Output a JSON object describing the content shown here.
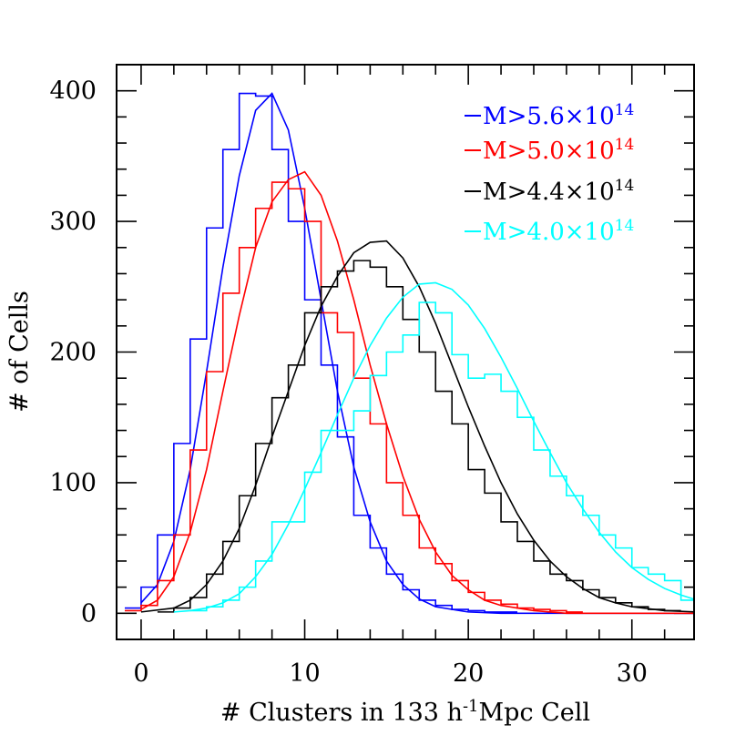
{
  "chart_data": {
    "type": "line",
    "title": "",
    "xlabel": "# Clusters in 133 h",
    "xlabel_sup": "-1",
    "xlabel_suffix": "Mpc Cell",
    "ylabel": "# of Cells",
    "xlim": [
      -1.5,
      33.8
    ],
    "ylim": [
      -20,
      420
    ],
    "x_ticks": [
      0,
      10,
      20,
      30
    ],
    "x_tick_labels": [
      "0",
      "10",
      "20",
      "30"
    ],
    "y_ticks": [
      0,
      100,
      200,
      300,
      400
    ],
    "y_tick_labels": [
      "0",
      "100",
      "200",
      "300",
      "400"
    ],
    "grid": false,
    "legend_position": "top-right",
    "series": [
      {
        "name": "M>5.6×10",
        "name_sup": "14",
        "color": "#0000ff",
        "histogram": [
          {
            "x": -0.5,
            "y": 4
          },
          {
            "x": 0.5,
            "y": 20
          },
          {
            "x": 1.5,
            "y": 60
          },
          {
            "x": 2.5,
            "y": 130
          },
          {
            "x": 3.5,
            "y": 210
          },
          {
            "x": 4.5,
            "y": 295
          },
          {
            "x": 5.5,
            "y": 355
          },
          {
            "x": 6.5,
            "y": 398
          },
          {
            "x": 7.5,
            "y": 396
          },
          {
            "x": 8.5,
            "y": 355
          },
          {
            "x": 9.5,
            "y": 300
          },
          {
            "x": 10.5,
            "y": 240
          },
          {
            "x": 11.5,
            "y": 190
          },
          {
            "x": 12.5,
            "y": 135
          },
          {
            "x": 13.5,
            "y": 75
          },
          {
            "x": 14.5,
            "y": 50
          },
          {
            "x": 15.5,
            "y": 30
          },
          {
            "x": 16.5,
            "y": 18
          },
          {
            "x": 17.5,
            "y": 10
          },
          {
            "x": 18.5,
            "y": 6
          },
          {
            "x": 19.5,
            "y": 3
          },
          {
            "x": 20.5,
            "y": 2
          },
          {
            "x": 21.5,
            "y": 1
          },
          {
            "x": 22.5,
            "y": 1
          }
        ],
        "fit": [
          {
            "x": 0,
            "y": 8
          },
          {
            "x": 1,
            "y": 22
          },
          {
            "x": 2,
            "y": 55
          },
          {
            "x": 3,
            "y": 110
          },
          {
            "x": 4,
            "y": 185
          },
          {
            "x": 5,
            "y": 265
          },
          {
            "x": 6,
            "y": 335
          },
          {
            "x": 7,
            "y": 385
          },
          {
            "x": 8,
            "y": 398
          },
          {
            "x": 9,
            "y": 370
          },
          {
            "x": 10,
            "y": 310
          },
          {
            "x": 11,
            "y": 240
          },
          {
            "x": 12,
            "y": 170
          },
          {
            "x": 13,
            "y": 112
          },
          {
            "x": 14,
            "y": 70
          },
          {
            "x": 15,
            "y": 40
          },
          {
            "x": 16,
            "y": 22
          },
          {
            "x": 17,
            "y": 11
          },
          {
            "x": 18,
            "y": 5
          },
          {
            "x": 20,
            "y": 1
          },
          {
            "x": 22,
            "y": 0
          },
          {
            "x": 34,
            "y": 0
          }
        ]
      },
      {
        "name": "M>5.0×10",
        "name_sup": "14",
        "color": "#ff0000",
        "histogram": [
          {
            "x": -0.5,
            "y": 2
          },
          {
            "x": 0.5,
            "y": 6
          },
          {
            "x": 1.5,
            "y": 25
          },
          {
            "x": 2.5,
            "y": 60
          },
          {
            "x": 3.5,
            "y": 125
          },
          {
            "x": 4.5,
            "y": 185
          },
          {
            "x": 5.5,
            "y": 245
          },
          {
            "x": 6.5,
            "y": 280
          },
          {
            "x": 7.5,
            "y": 310
          },
          {
            "x": 8.5,
            "y": 330
          },
          {
            "x": 9.5,
            "y": 325
          },
          {
            "x": 10.5,
            "y": 300
          },
          {
            "x": 11.5,
            "y": 230
          },
          {
            "x": 12.5,
            "y": 215
          },
          {
            "x": 13.5,
            "y": 180
          },
          {
            "x": 14.5,
            "y": 145
          },
          {
            "x": 15.5,
            "y": 100
          },
          {
            "x": 16.5,
            "y": 75
          },
          {
            "x": 17.5,
            "y": 50
          },
          {
            "x": 18.5,
            "y": 38
          },
          {
            "x": 19.5,
            "y": 25
          },
          {
            "x": 20.5,
            "y": 16
          },
          {
            "x": 21.5,
            "y": 10
          },
          {
            "x": 22.5,
            "y": 7
          },
          {
            "x": 23.5,
            "y": 4
          },
          {
            "x": 24.5,
            "y": 3
          },
          {
            "x": 25.5,
            "y": 2
          },
          {
            "x": 26.5,
            "y": 1
          }
        ],
        "fit": [
          {
            "x": 0,
            "y": 3
          },
          {
            "x": 1,
            "y": 10
          },
          {
            "x": 2,
            "y": 28
          },
          {
            "x": 3,
            "y": 62
          },
          {
            "x": 4,
            "y": 110
          },
          {
            "x": 5,
            "y": 170
          },
          {
            "x": 6,
            "y": 228
          },
          {
            "x": 7,
            "y": 280
          },
          {
            "x": 8,
            "y": 315
          },
          {
            "x": 9,
            "y": 332
          },
          {
            "x": 10,
            "y": 338
          },
          {
            "x": 11,
            "y": 320
          },
          {
            "x": 12,
            "y": 285
          },
          {
            "x": 13,
            "y": 240
          },
          {
            "x": 14,
            "y": 190
          },
          {
            "x": 15,
            "y": 145
          },
          {
            "x": 16,
            "y": 105
          },
          {
            "x": 17,
            "y": 72
          },
          {
            "x": 18,
            "y": 47
          },
          {
            "x": 19,
            "y": 29
          },
          {
            "x": 20,
            "y": 18
          },
          {
            "x": 21,
            "y": 10
          },
          {
            "x": 22,
            "y": 6
          },
          {
            "x": 24,
            "y": 2
          },
          {
            "x": 26,
            "y": 0
          },
          {
            "x": 34,
            "y": 0
          }
        ]
      },
      {
        "name": "M>4.4×10",
        "name_sup": "14",
        "color": "#000000",
        "histogram": [
          {
            "x": 1.5,
            "y": 1
          },
          {
            "x": 2.5,
            "y": 4
          },
          {
            "x": 3.5,
            "y": 12
          },
          {
            "x": 4.5,
            "y": 30
          },
          {
            "x": 5.5,
            "y": 55
          },
          {
            "x": 6.5,
            "y": 90
          },
          {
            "x": 7.5,
            "y": 130
          },
          {
            "x": 8.5,
            "y": 165
          },
          {
            "x": 9.5,
            "y": 190
          },
          {
            "x": 10.5,
            "y": 230
          },
          {
            "x": 11.5,
            "y": 250
          },
          {
            "x": 12.5,
            "y": 262
          },
          {
            "x": 13.5,
            "y": 270
          },
          {
            "x": 14.5,
            "y": 265
          },
          {
            "x": 15.5,
            "y": 250
          },
          {
            "x": 16.5,
            "y": 225
          },
          {
            "x": 17.5,
            "y": 200
          },
          {
            "x": 18.5,
            "y": 170
          },
          {
            "x": 19.5,
            "y": 145
          },
          {
            "x": 20.5,
            "y": 110
          },
          {
            "x": 21.5,
            "y": 92
          },
          {
            "x": 22.5,
            "y": 70
          },
          {
            "x": 23.5,
            "y": 55
          },
          {
            "x": 24.5,
            "y": 40
          },
          {
            "x": 25.5,
            "y": 30
          },
          {
            "x": 26.5,
            "y": 25
          },
          {
            "x": 27.5,
            "y": 18
          },
          {
            "x": 28.5,
            "y": 12
          },
          {
            "x": 29.5,
            "y": 8
          },
          {
            "x": 30.5,
            "y": 5
          },
          {
            "x": 31.5,
            "y": 3
          },
          {
            "x": 32.5,
            "y": 2
          }
        ],
        "fit": [
          {
            "x": 0,
            "y": 1
          },
          {
            "x": 2,
            "y": 4
          },
          {
            "x": 3,
            "y": 10
          },
          {
            "x": 4,
            "y": 22
          },
          {
            "x": 5,
            "y": 40
          },
          {
            "x": 6,
            "y": 65
          },
          {
            "x": 7,
            "y": 98
          },
          {
            "x": 8,
            "y": 135
          },
          {
            "x": 9,
            "y": 170
          },
          {
            "x": 10,
            "y": 205
          },
          {
            "x": 11,
            "y": 235
          },
          {
            "x": 12,
            "y": 258
          },
          {
            "x": 13,
            "y": 276
          },
          {
            "x": 14,
            "y": 284
          },
          {
            "x": 15,
            "y": 285
          },
          {
            "x": 16,
            "y": 272
          },
          {
            "x": 17,
            "y": 250
          },
          {
            "x": 18,
            "y": 222
          },
          {
            "x": 19,
            "y": 190
          },
          {
            "x": 20,
            "y": 158
          },
          {
            "x": 21,
            "y": 128
          },
          {
            "x": 22,
            "y": 100
          },
          {
            "x": 23,
            "y": 76
          },
          {
            "x": 24,
            "y": 56
          },
          {
            "x": 25,
            "y": 40
          },
          {
            "x": 26,
            "y": 28
          },
          {
            "x": 27,
            "y": 19
          },
          {
            "x": 28,
            "y": 12
          },
          {
            "x": 29,
            "y": 8
          },
          {
            "x": 30,
            "y": 5
          },
          {
            "x": 32,
            "y": 2
          },
          {
            "x": 34,
            "y": 1
          }
        ]
      },
      {
        "name": "M>4.0×10",
        "name_sup": "14",
        "color": "#00ffff",
        "histogram": [
          {
            "x": 3.5,
            "y": 2
          },
          {
            "x": 4.5,
            "y": 5
          },
          {
            "x": 5.5,
            "y": 10
          },
          {
            "x": 6.5,
            "y": 20
          },
          {
            "x": 7.5,
            "y": 40
          },
          {
            "x": 8.5,
            "y": 70
          },
          {
            "x": 9.5,
            "y": 70
          },
          {
            "x": 10.5,
            "y": 108
          },
          {
            "x": 11.5,
            "y": 140
          },
          {
            "x": 12.5,
            "y": 140
          },
          {
            "x": 13.5,
            "y": 155
          },
          {
            "x": 14.5,
            "y": 182
          },
          {
            "x": 15.5,
            "y": 200
          },
          {
            "x": 16.5,
            "y": 213
          },
          {
            "x": 17.5,
            "y": 238
          },
          {
            "x": 18.5,
            "y": 230
          },
          {
            "x": 19.5,
            "y": 198
          },
          {
            "x": 20.5,
            "y": 180
          },
          {
            "x": 21.5,
            "y": 183
          },
          {
            "x": 22.5,
            "y": 170
          },
          {
            "x": 23.5,
            "y": 150
          },
          {
            "x": 24.5,
            "y": 125
          },
          {
            "x": 25.5,
            "y": 105
          },
          {
            "x": 26.5,
            "y": 90
          },
          {
            "x": 27.5,
            "y": 75
          },
          {
            "x": 28.5,
            "y": 60
          },
          {
            "x": 29.5,
            "y": 50
          },
          {
            "x": 30.5,
            "y": 35
          },
          {
            "x": 31.5,
            "y": 30
          },
          {
            "x": 32.5,
            "y": 25
          },
          {
            "x": 33.5,
            "y": 10
          }
        ],
        "fit": [
          {
            "x": 2,
            "y": 1
          },
          {
            "x": 3,
            "y": 2
          },
          {
            "x": 4,
            "y": 4
          },
          {
            "x": 5,
            "y": 8
          },
          {
            "x": 6,
            "y": 15
          },
          {
            "x": 7,
            "y": 28
          },
          {
            "x": 8,
            "y": 45
          },
          {
            "x": 9,
            "y": 68
          },
          {
            "x": 10,
            "y": 95
          },
          {
            "x": 11,
            "y": 123
          },
          {
            "x": 12,
            "y": 152
          },
          {
            "x": 13,
            "y": 180
          },
          {
            "x": 14,
            "y": 205
          },
          {
            "x": 15,
            "y": 226
          },
          {
            "x": 16,
            "y": 242
          },
          {
            "x": 17,
            "y": 252
          },
          {
            "x": 18,
            "y": 253
          },
          {
            "x": 19,
            "y": 248
          },
          {
            "x": 20,
            "y": 236
          },
          {
            "x": 21,
            "y": 218
          },
          {
            "x": 22,
            "y": 196
          },
          {
            "x": 23,
            "y": 172
          },
          {
            "x": 24,
            "y": 147
          },
          {
            "x": 25,
            "y": 123
          },
          {
            "x": 26,
            "y": 100
          },
          {
            "x": 27,
            "y": 80
          },
          {
            "x": 28,
            "y": 62
          },
          {
            "x": 29,
            "y": 47
          },
          {
            "x": 30,
            "y": 35
          },
          {
            "x": 31,
            "y": 26
          },
          {
            "x": 32,
            "y": 19
          },
          {
            "x": 33,
            "y": 14
          },
          {
            "x": 34,
            "y": 10
          }
        ]
      }
    ]
  }
}
